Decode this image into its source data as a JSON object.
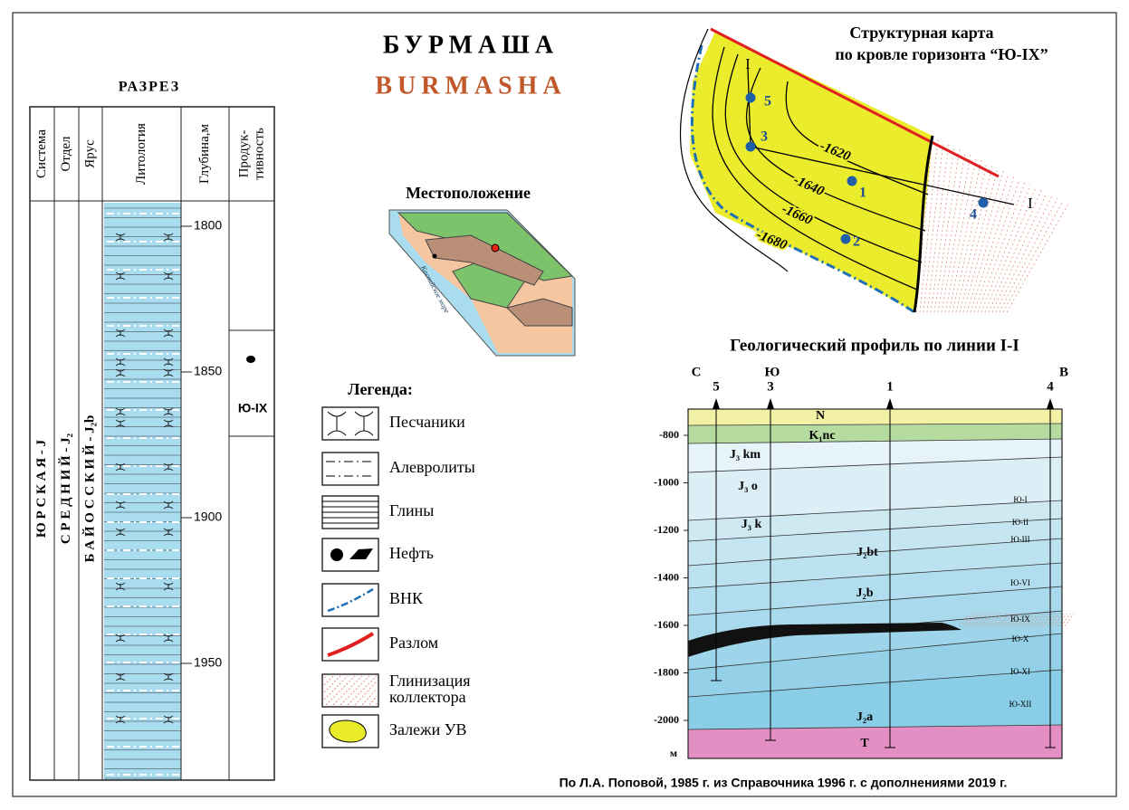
{
  "header": {
    "title": "БУРМАША",
    "subtitle": "BURMASHA"
  },
  "section": {
    "title": "РАЗРЕЗ",
    "columns": [
      "Система",
      "Отдел",
      "Ярус",
      "Литология",
      "Глубина,м",
      [
        "Продук-",
        "тивность"
      ]
    ],
    "system": "Ю Р С К А Я - J",
    "series": "С Р Е Д Н И Й - J₂",
    "stage": "Б А Й О С С К И Й - J₂b",
    "depths": [
      1800,
      1850,
      1900,
      1950
    ],
    "horizon": "Ю-IX"
  },
  "location": {
    "title": "Местоположение",
    "sea": "Каспийское море"
  },
  "legend": {
    "title": "Легенда:",
    "items": [
      "Песчаники",
      "Алевролиты",
      "Глины",
      "Нефть",
      "ВНК",
      "Разлом",
      [
        "Глинизация",
        "коллектора"
      ],
      "Залежи УВ"
    ]
  },
  "map": {
    "title": [
      "Структурная карта",
      "по кровле горизонта  “Ю-IX”"
    ],
    "contours": [
      -1620,
      -1640,
      -1660,
      -1680
    ],
    "wells": [
      5,
      3,
      1,
      2,
      4
    ],
    "line": [
      "I",
      "I"
    ]
  },
  "profile": {
    "title": "Геологический профиль по линии I-I",
    "directions": [
      "С",
      "Ю",
      "В"
    ],
    "wells": [
      5,
      3,
      1,
      4
    ],
    "yticks": [
      -800,
      -1000,
      -1200,
      -1400,
      -1600,
      -1800,
      -2000
    ],
    "unit": "м",
    "layers": [
      "N",
      "K₁nc",
      "J₃ km",
      "J₃ o",
      "J₃ k",
      "J₂bt",
      "J₂b",
      "J₂a",
      "T"
    ],
    "horizons": [
      "Ю-I",
      "Ю-II",
      "Ю-III",
      "Ю-VI",
      "Ю-IX",
      "Ю-X",
      "Ю-XI",
      "Ю-XII"
    ]
  },
  "footer": "По Л.А. Поповой, 1985 г. из Справочника 1996 г. с дополнениями 2019 г."
}
